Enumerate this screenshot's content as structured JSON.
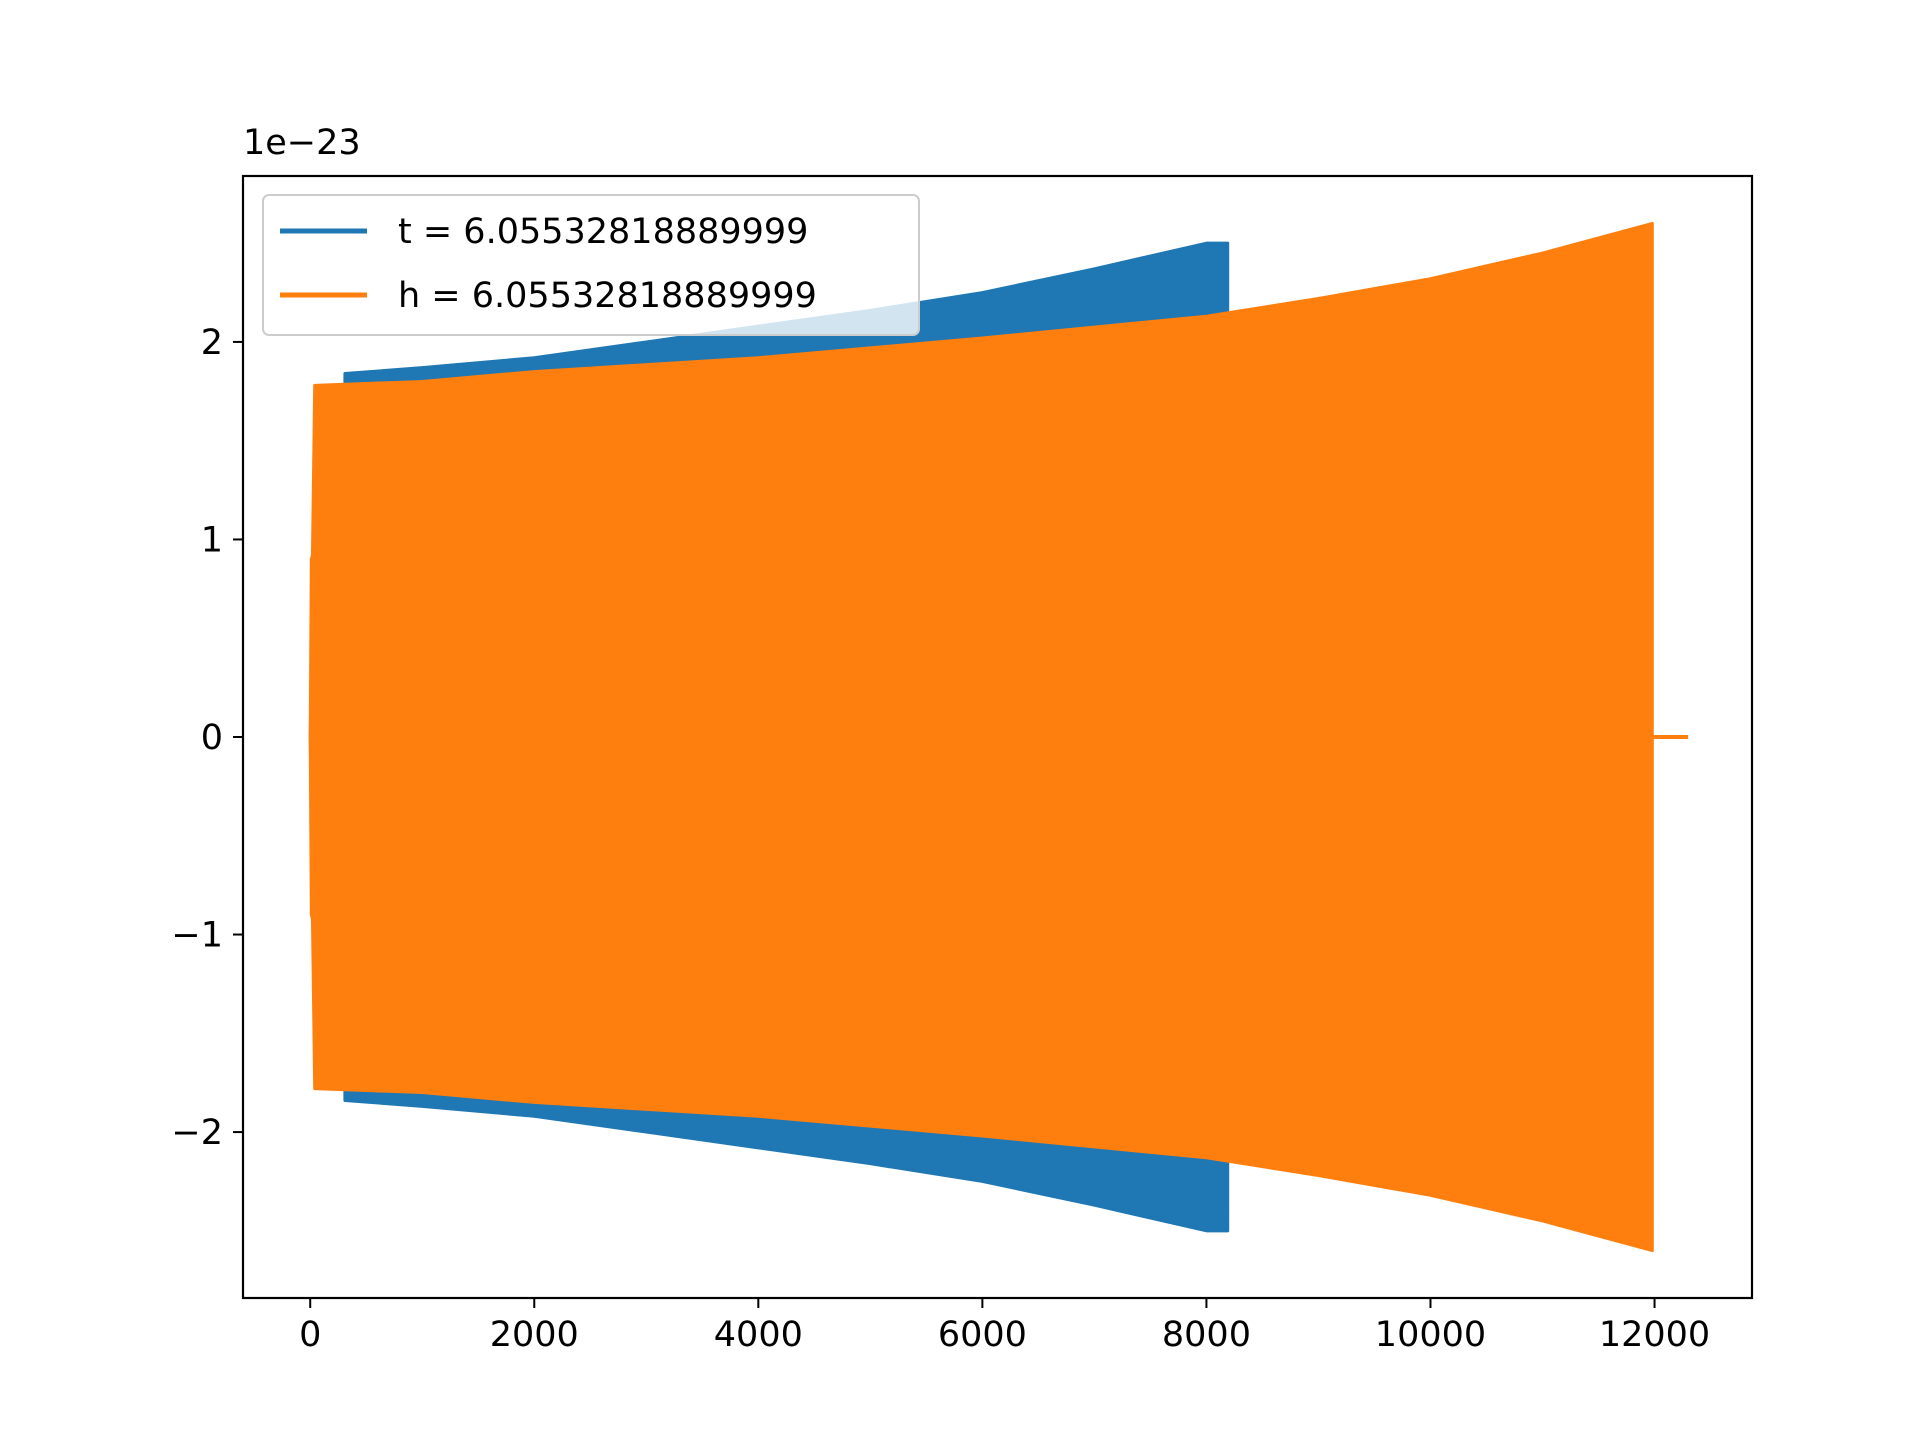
{
  "chart_data": {
    "type": "line",
    "title": "",
    "xlabel": "",
    "ylabel": "",
    "y_offset_text": "1e−23",
    "xlim": [
      -600,
      12870
    ],
    "ylim": [
      -2.84,
      2.84
    ],
    "x_ticks": [
      0,
      2000,
      4000,
      6000,
      8000,
      10000,
      12000
    ],
    "x_tick_labels": [
      "0",
      "2000",
      "4000",
      "6000",
      "8000",
      "10000",
      "12000"
    ],
    "y_ticks": [
      -2,
      -1,
      0,
      1,
      2
    ],
    "y_tick_labels": [
      "−2",
      "−1",
      "0",
      "1",
      "2"
    ],
    "grid": false,
    "legend_position": "upper left",
    "series": [
      {
        "name": "t = 6.05532818889999",
        "color": "#1f77b4",
        "note_units": "y values in units of 1e-23",
        "envelope": {
          "x": [
            0,
            10,
            20,
            300,
            310,
            1000,
            2000,
            3000,
            4000,
            5000,
            6000,
            7000,
            8000,
            8190
          ],
          "upper": [
            0.0,
            0.44,
            0.92,
            0.92,
            1.84,
            1.87,
            1.92,
            2.0,
            2.08,
            2.16,
            2.25,
            2.37,
            2.5,
            2.5
          ],
          "lower": [
            0.0,
            -0.44,
            -0.92,
            -0.92,
            -1.84,
            -1.87,
            -1.92,
            -2.0,
            -2.08,
            -2.16,
            -2.25,
            -2.37,
            -2.5,
            -2.5
          ]
        },
        "end_x": 8190
      },
      {
        "name": "h = 6.05532818889999",
        "color": "#ff7f0e",
        "note_units": "y values in units of 1e-23",
        "envelope": {
          "x": [
            0,
            10,
            20,
            40,
            1000,
            2000,
            4000,
            6000,
            8000,
            9000,
            10000,
            11000,
            11980
          ],
          "upper": [
            0.0,
            0.9,
            0.92,
            1.78,
            1.8,
            1.85,
            1.92,
            2.02,
            2.13,
            2.22,
            2.32,
            2.45,
            2.6
          ],
          "lower": [
            0.0,
            -0.9,
            -0.92,
            -1.78,
            -1.8,
            -1.85,
            -1.92,
            -2.02,
            -2.13,
            -2.22,
            -2.32,
            -2.45,
            -2.6
          ]
        },
        "tail": {
          "x": [
            11980,
            12300
          ],
          "y": [
            0,
            0
          ]
        }
      }
    ]
  }
}
